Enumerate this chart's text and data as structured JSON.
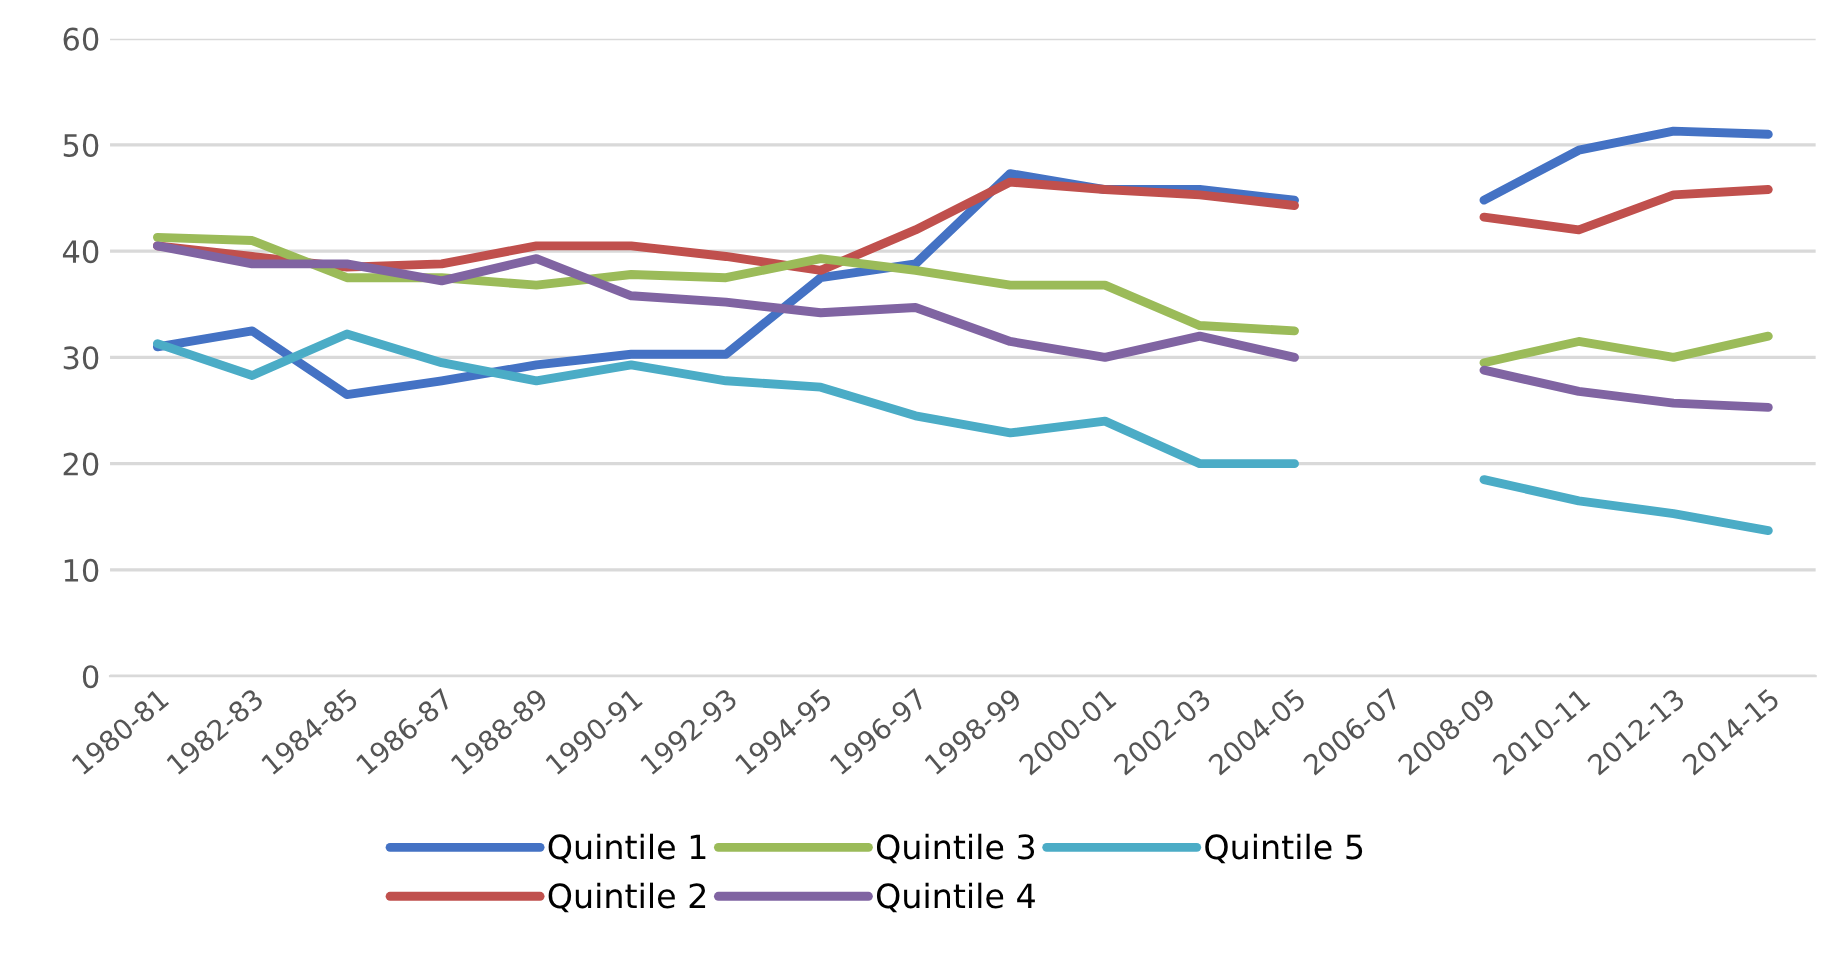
{
  "chart_data": {
    "type": "line",
    "categories": [
      "1980-81",
      "1982-83",
      "1984-85",
      "1986-87",
      "1988-89",
      "1990-91",
      "1992-93",
      "1994-95",
      "1996-97",
      "1998-99",
      "2000-01",
      "2002-03",
      "2004-05",
      "2006-07",
      "2008-09",
      "2010-11",
      "2012-13",
      "2014-15"
    ],
    "series": [
      {
        "name": "Quintile 1",
        "color": "#4472c4",
        "values": [
          31,
          32.5,
          26.5,
          27.8,
          29.3,
          30.3,
          30.3,
          37.5,
          38.8,
          47.3,
          45.8,
          45.8,
          44.8,
          null,
          44.8,
          49.5,
          51.3,
          51
        ]
      },
      {
        "name": "Quintile 2",
        "color": "#c0504d",
        "values": [
          40.5,
          39.5,
          38.5,
          38.8,
          40.5,
          40.5,
          39.5,
          38.2,
          42,
          46.5,
          45.8,
          45.3,
          44.3,
          null,
          43.2,
          42,
          45.3,
          45.8
        ]
      },
      {
        "name": "Quintile 3",
        "color": "#9bbb59",
        "values": [
          41.3,
          41,
          37.5,
          37.5,
          36.8,
          37.8,
          37.5,
          39.3,
          38.2,
          36.8,
          36.8,
          33,
          32.5,
          null,
          29.5,
          31.5,
          30,
          32
        ]
      },
      {
        "name": "Quintile 4",
        "color": "#8064a2",
        "values": [
          40.5,
          38.8,
          38.8,
          37.2,
          39.3,
          35.8,
          35.2,
          34.2,
          34.7,
          31.5,
          30,
          32,
          30,
          null,
          28.8,
          26.8,
          25.7,
          25.3
        ]
      },
      {
        "name": "Quintile 5",
        "color": "#4bacc6",
        "values": [
          31.3,
          28.3,
          32.2,
          29.5,
          27.8,
          29.3,
          27.8,
          27.2,
          24.5,
          22.9,
          24,
          20,
          20,
          null,
          18.5,
          16.5,
          15.3,
          13.7
        ]
      }
    ],
    "ylim": [
      0,
      60
    ],
    "yticks": [
      0,
      10,
      20,
      30,
      40,
      50,
      60
    ],
    "grid": "y",
    "legend": "bottom",
    "marker": "none",
    "line_style": "solid"
  }
}
